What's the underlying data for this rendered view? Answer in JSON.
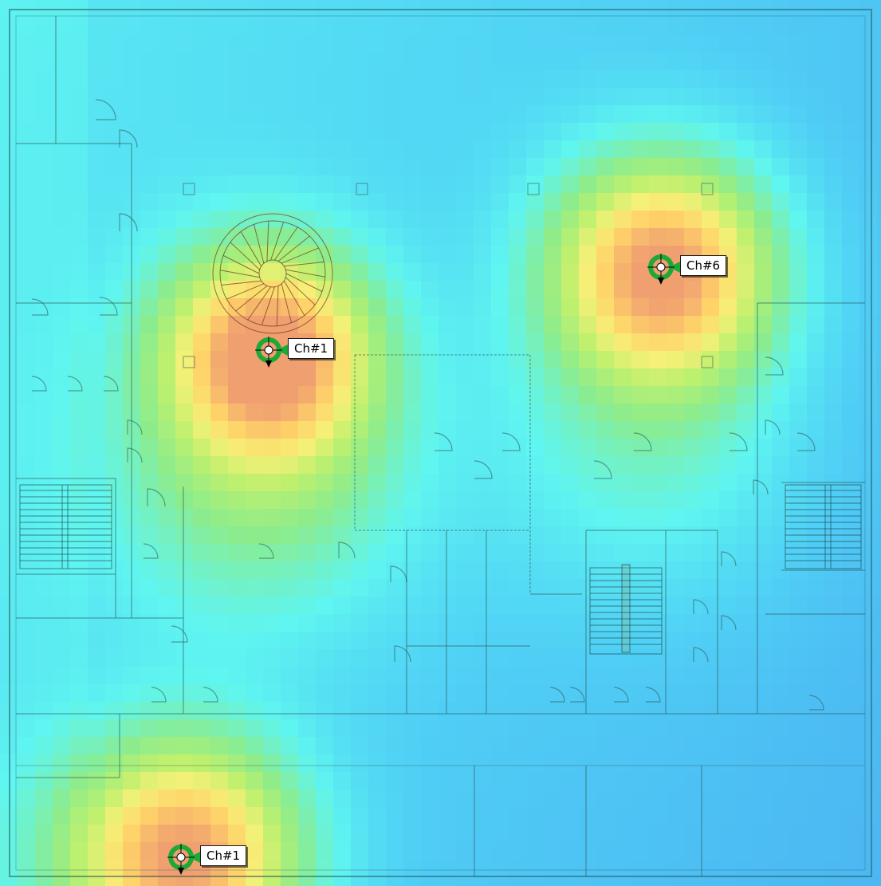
{
  "heatmap": {
    "colors": {
      "strong": "#f0a070",
      "good": "#ffd86a",
      "fair": "#f2f27a",
      "moderate": "#90ec8e",
      "weak": "#5ff5f0",
      "poor": "#4aa6f0",
      "outline": "#2a5a5a"
    }
  },
  "access_points": [
    {
      "label": "Ch#1",
      "icon": "access-point-icon",
      "ring_color": "#1fa838",
      "pointer_color": "#1fa838"
    },
    {
      "label": "Ch#6",
      "icon": "access-point-icon",
      "ring_color": "#1fa838",
      "pointer_color": "#1fa838"
    },
    {
      "label": "Ch#1",
      "icon": "access-point-icon",
      "ring_color": "#1fa838",
      "pointer_color": "#1fa838"
    }
  ]
}
